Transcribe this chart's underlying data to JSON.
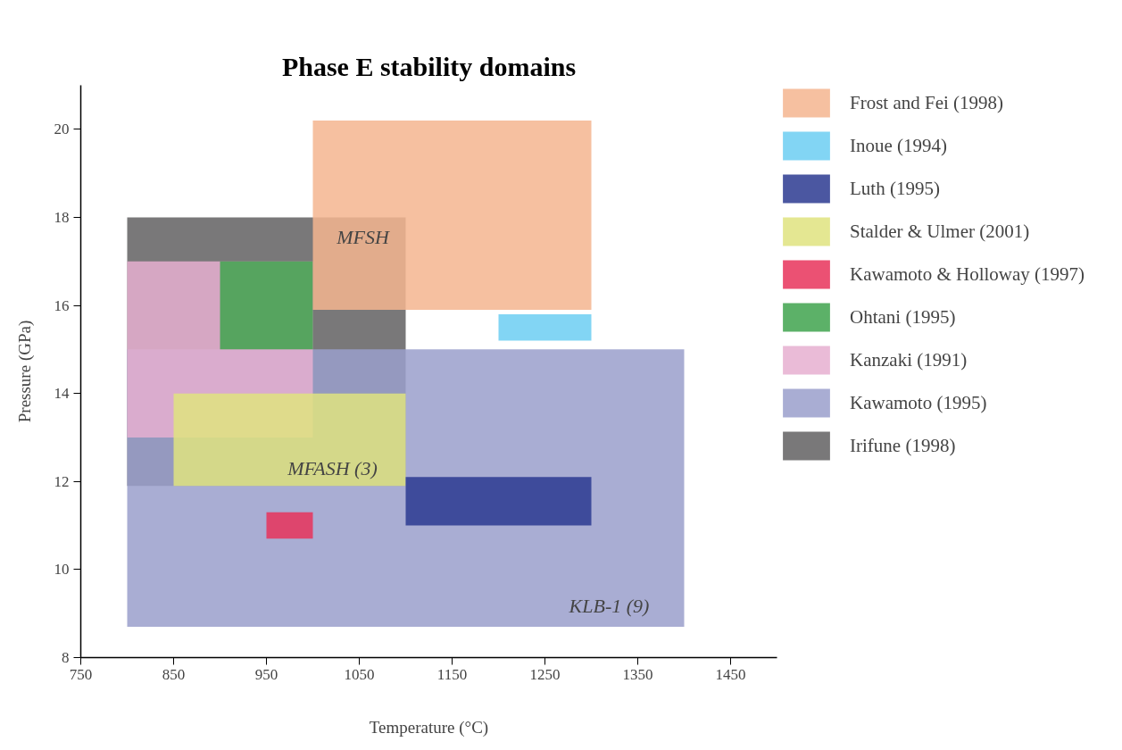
{
  "chart_data": {
    "type": "area",
    "title": "Phase E stability domains",
    "xlabel": "Temperature (°C)",
    "ylabel": "Pressure (GPa)",
    "xlim": [
      750,
      1500
    ],
    "ylim": [
      8,
      21
    ],
    "xticks": [
      750,
      850,
      950,
      1050,
      1150,
      1250,
      1350,
      1450
    ],
    "yticks": [
      8,
      10,
      12,
      14,
      16,
      18,
      20
    ],
    "grid": false,
    "legend": "top right",
    "series": [
      {
        "name": "Frost and Fei (1998)",
        "color": "#f5b58f",
        "x": [
          1000,
          1300,
          1300,
          1000
        ],
        "values": [
          15.9,
          15.9,
          20.2,
          20.2
        ]
      },
      {
        "name": "Inoue (1994)",
        "color": "#6ccef2",
        "x": [
          1200,
          1300,
          1300,
          1200
        ],
        "values": [
          15.2,
          15.2,
          15.8,
          15.8
        ]
      },
      {
        "name": "Luth (1995)",
        "color": "#2b3990",
        "x": [
          1100,
          1300,
          1300,
          1100
        ],
        "values": [
          11.0,
          11.0,
          12.1,
          12.1
        ]
      },
      {
        "name": "Stalder & Ulmer (2001)",
        "color": "#dfe37f",
        "x": [
          850,
          1100,
          1100,
          850
        ],
        "values": [
          11.9,
          11.9,
          14.0,
          14.0
        ]
      },
      {
        "name": "Kawamoto & Holloway (1997)",
        "color": "#e8325a",
        "x": [
          950,
          1000,
          1000,
          950
        ],
        "values": [
          10.7,
          10.7,
          11.3,
          11.3
        ]
      },
      {
        "name": "Ohtani (1995)",
        "color": "#3fa34d",
        "x": [
          900,
          1000,
          1000,
          900
        ],
        "values": [
          15.0,
          15.0,
          17.0,
          17.0
        ]
      },
      {
        "name": "Kanzaki (1991)",
        "color": "#e6afd0",
        "x": [
          800,
          1000,
          1000,
          800
        ],
        "values": [
          13.0,
          13.0,
          17.0,
          17.0
        ]
      },
      {
        "name": "Kawamoto (1995)",
        "color": "#9a9fcb",
        "x": [
          800,
          1400,
          1400,
          800
        ],
        "values": [
          8.7,
          8.7,
          15.0,
          15.0
        ]
      },
      {
        "name": "Irifune (1998)",
        "color": "#616061",
        "x": [
          800,
          1100,
          1100,
          800
        ],
        "values": [
          11.9,
          11.9,
          18.0,
          18.0
        ]
      }
    ],
    "annotations": [
      "MFSH",
      "MFASH (3)",
      "KLB-1 (9)"
    ]
  }
}
